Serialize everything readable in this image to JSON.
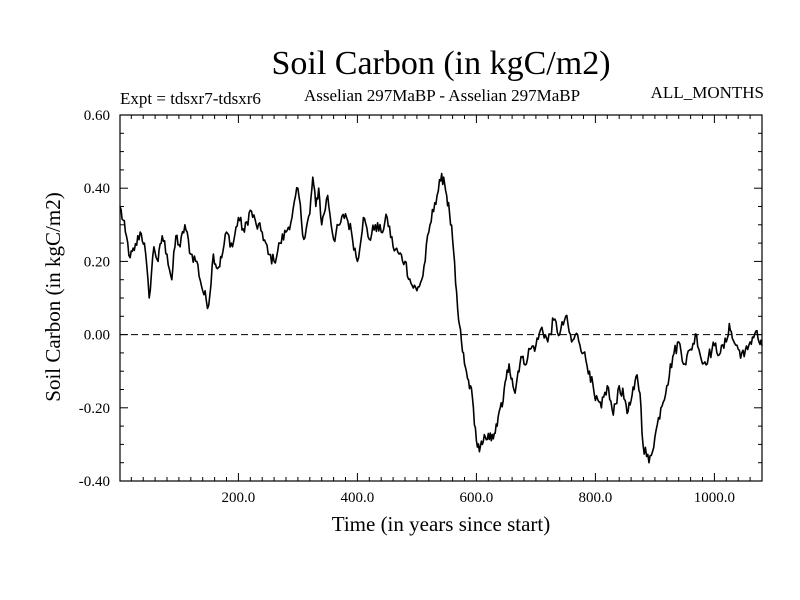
{
  "chart_data": {
    "type": "line",
    "title": "Soil Carbon (in kgC/m2)",
    "subtitle_left": "Expt = tdsxr7-tdsxr6",
    "subtitle_center": "Asselian 297MaBP - Asselian 297MaBP",
    "subtitle_right": "ALL_MONTHS",
    "xlabel": "Time (in years since start)",
    "ylabel": "Soil Carbon (in kgC/m2)",
    "xlim": [
      1,
      1080
    ],
    "ylim": [
      -0.4,
      0.6
    ],
    "xticks": [
      200,
      400,
      600,
      800,
      1000
    ],
    "xtick_labels": [
      "200.0",
      "400.0",
      "600.0",
      "800.0",
      "1000.0"
    ],
    "yticks": [
      -0.4,
      -0.2,
      0.0,
      0.2,
      0.4,
      0.6
    ],
    "ytick_labels": [
      "-0.40",
      "-0.20",
      "0.00",
      "0.20",
      "0.40",
      "0.60"
    ],
    "reference_line": {
      "y": 0.0,
      "style": "dashed"
    },
    "series": [
      {
        "name": "Soil Carbon",
        "x": [
          1,
          10,
          18,
          25,
          35,
          42,
          50,
          58,
          65,
          72,
          80,
          88,
          95,
          102,
          110,
          120,
          130,
          140,
          150,
          158,
          165,
          172,
          180,
          190,
          200,
          210,
          220,
          230,
          240,
          250,
          260,
          270,
          280,
          290,
          300,
          310,
          320,
          325,
          330,
          335,
          340,
          350,
          360,
          370,
          380,
          390,
          400,
          410,
          420,
          430,
          440,
          450,
          460,
          470,
          480,
          490,
          500,
          510,
          520,
          530,
          540,
          545,
          550,
          555,
          560,
          565,
          570,
          575,
          580,
          585,
          590,
          595,
          600,
          605,
          610,
          615,
          620,
          625,
          630,
          635,
          640,
          645,
          650,
          655,
          660,
          665,
          670,
          675,
          680,
          690,
          700,
          710,
          720,
          730,
          740,
          750,
          760,
          770,
          780,
          790,
          800,
          810,
          820,
          830,
          840,
          850,
          855,
          860,
          865,
          870,
          875,
          880,
          890,
          900,
          910,
          920,
          930,
          940,
          950,
          960,
          970,
          980,
          990,
          1000,
          1010,
          1020,
          1025,
          1030,
          1040,
          1050,
          1060,
          1070,
          1075,
          1080
        ],
        "values": [
          0.35,
          0.28,
          0.21,
          0.23,
          0.28,
          0.25,
          0.1,
          0.24,
          0.2,
          0.27,
          0.22,
          0.15,
          0.27,
          0.24,
          0.3,
          0.22,
          0.2,
          0.12,
          0.08,
          0.22,
          0.18,
          0.21,
          0.28,
          0.24,
          0.32,
          0.28,
          0.34,
          0.3,
          0.28,
          0.22,
          0.2,
          0.25,
          0.28,
          0.32,
          0.4,
          0.26,
          0.33,
          0.43,
          0.35,
          0.4,
          0.3,
          0.38,
          0.26,
          0.3,
          0.33,
          0.28,
          0.2,
          0.32,
          0.26,
          0.3,
          0.28,
          0.32,
          0.24,
          0.22,
          0.2,
          0.14,
          0.12,
          0.16,
          0.28,
          0.36,
          0.42,
          0.43,
          0.38,
          0.33,
          0.26,
          0.14,
          0.04,
          -0.02,
          -0.08,
          -0.12,
          -0.14,
          -0.2,
          -0.29,
          -0.32,
          -0.3,
          -0.28,
          -0.27,
          -0.29,
          -0.27,
          -0.25,
          -0.2,
          -0.18,
          -0.12,
          -0.08,
          -0.12,
          -0.16,
          -0.1,
          -0.06,
          -0.08,
          -0.04,
          -0.03,
          0.02,
          -0.02,
          0.04,
          0.0,
          0.05,
          -0.02,
          0.0,
          -0.05,
          -0.1,
          -0.18,
          -0.2,
          -0.14,
          -0.22,
          -0.14,
          -0.18,
          -0.21,
          -0.18,
          -0.15,
          -0.11,
          -0.16,
          -0.3,
          -0.35,
          -0.28,
          -0.2,
          -0.14,
          -0.06,
          -0.02,
          -0.08,
          -0.04,
          0.0,
          -0.08,
          -0.06,
          -0.03,
          -0.05,
          -0.02,
          0.03,
          -0.01,
          -0.04,
          -0.06,
          -0.02,
          0.01,
          -0.02,
          -0.03
        ]
      }
    ]
  }
}
